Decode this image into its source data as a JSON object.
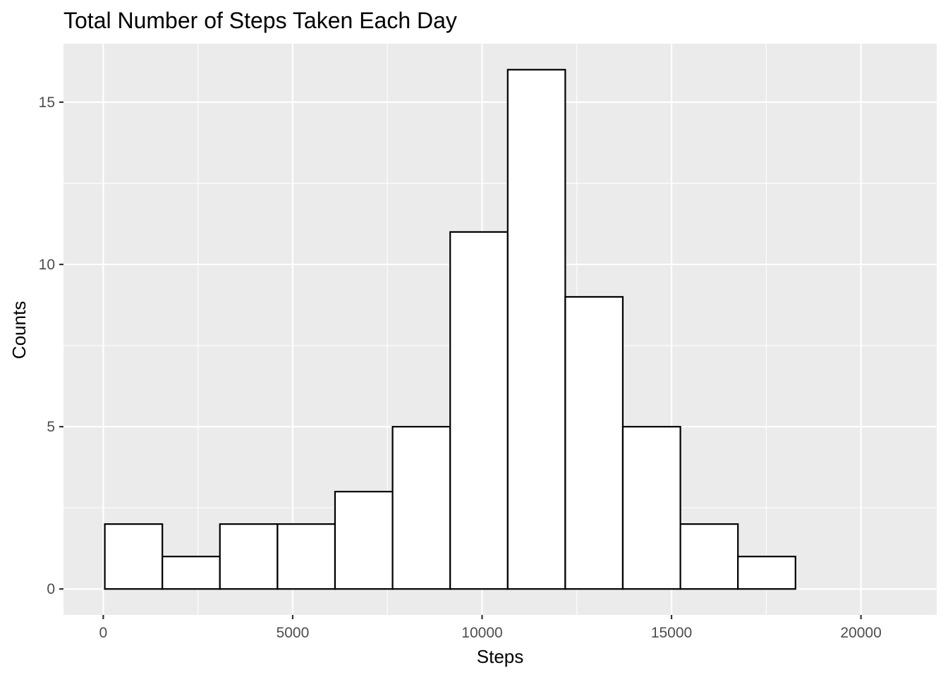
{
  "chart_data": {
    "type": "bar",
    "title": "Total Number of Steps Taken Each Day",
    "xlabel": "Steps",
    "ylabel": "Counts",
    "xlim": [
      -1050,
      22000
    ],
    "ylim": [
      -0.8,
      16.8
    ],
    "x_ticks": [
      0,
      5000,
      10000,
      15000,
      20000
    ],
    "x_tick_labels": [
      "0",
      "5000",
      "10000",
      "15000",
      "20000"
    ],
    "y_ticks": [
      0,
      5,
      10,
      15
    ],
    "y_tick_labels": [
      "0",
      "5",
      "10",
      "15"
    ],
    "grid": true,
    "bin_edges": [
      41,
      1560,
      3079,
      4599,
      6118,
      7637,
      9157,
      10676,
      12195,
      13714,
      15234,
      16753,
      18272,
      19792
    ],
    "values": [
      2,
      1,
      2,
      2,
      3,
      5,
      11,
      16,
      9,
      5,
      2,
      1,
      0
    ],
    "fill_color": "#ffffff",
    "outline_color": "#000000",
    "panel_color": "#ebebeb"
  }
}
